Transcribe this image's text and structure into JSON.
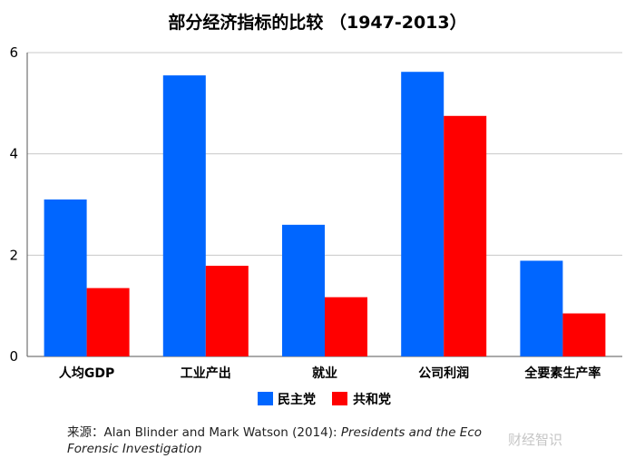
{
  "chart_data": {
    "type": "bar",
    "title": "部分经济指标的比较 （1947-2013）",
    "categories": [
      "人均GDP",
      "工业产出",
      "就业",
      "公司利润",
      "全要素生产率"
    ],
    "series": [
      {
        "name": "民主党",
        "color": "#0066ff",
        "values": [
          3.1,
          5.55,
          2.6,
          5.62,
          1.89
        ]
      },
      {
        "name": "共和党",
        "color": "#ff0000",
        "values": [
          1.35,
          1.79,
          1.17,
          4.75,
          0.85
        ]
      }
    ],
    "yticks": [
      0,
      2,
      4,
      6
    ],
    "ylim": [
      0,
      6
    ],
    "grid": true,
    "legend": "bottom"
  },
  "source": {
    "prefix": "来源：Alan Blinder and Mark Watson (2014): ",
    "italic1": "Presidents and the Eco",
    "italic2": "Forensic Investigation"
  },
  "watermark": "财经智识"
}
